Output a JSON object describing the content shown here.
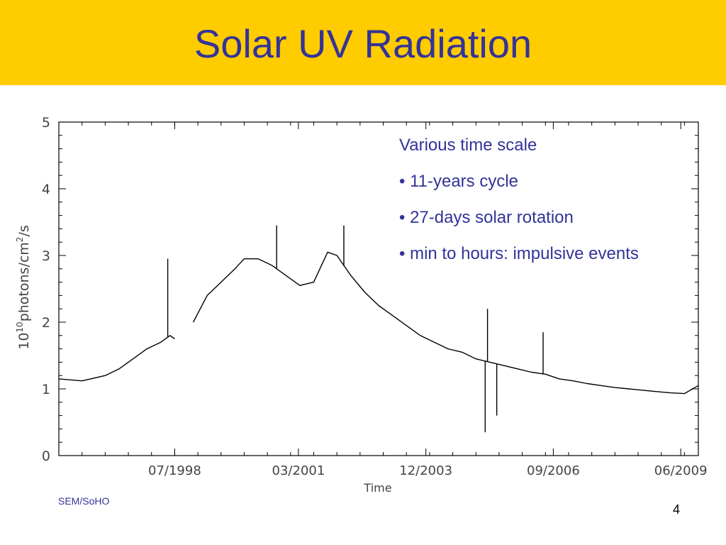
{
  "slide": {
    "title": "Solar UV Radiation",
    "band_color": "#ffcc00",
    "title_color": "#333399",
    "text_color": "#333399",
    "notes": [
      "Various time scale",
      "• 11-years cycle",
      "• 27-days solar rotation",
      "• min to hours: impulsive events"
    ],
    "source": "SEM/SoHO",
    "page_number": "4"
  },
  "chart_data": {
    "type": "line",
    "title": "",
    "xlabel": "Time",
    "ylabel_base": "10",
    "ylabel_exp": "10",
    "ylabel_mid": "photons/cm",
    "ylabel_exp2": "2",
    "ylabel_tail": "/s",
    "x_tick_labels": [
      "07/1998",
      "03/2001",
      "12/2003",
      "09/2006",
      "06/2009"
    ],
    "x_tick_years": [
      1998.5,
      2001.17,
      2003.92,
      2006.67,
      2009.42
    ],
    "xlim": [
      1996.0,
      2009.8
    ],
    "y_ticks": [
      "0",
      "1",
      "2",
      "3",
      "4",
      "5"
    ],
    "ylim": [
      0,
      5
    ],
    "line_color": "#000000",
    "series": [
      {
        "year": [
          1996.0,
          1996.5,
          1997.0,
          1997.3,
          1997.6,
          1997.9,
          1998.2,
          1998.4,
          1998.5,
          1998.6,
          1998.9,
          1999.2,
          1999.5,
          1999.8,
          2000.0,
          2000.3,
          2000.6,
          2000.9,
          2001.2,
          2001.5,
          2001.8,
          2002.0,
          2002.3,
          2002.6,
          2002.9,
          2003.2,
          2003.5,
          2003.8,
          2004.1,
          2004.4,
          2004.7,
          2005.0,
          2005.3,
          2005.6,
          2005.9,
          2006.2,
          2006.5,
          2006.8,
          2007.1,
          2007.4,
          2007.7,
          2008.0,
          2008.3,
          2008.6,
          2008.9,
          2009.2,
          2009.5,
          2009.8
        ],
        "value": [
          1.15,
          1.12,
          1.2,
          1.3,
          1.45,
          1.6,
          1.7,
          1.8,
          1.75,
          null,
          2.0,
          2.4,
          2.6,
          2.8,
          2.95,
          2.95,
          2.85,
          2.7,
          2.55,
          2.6,
          3.05,
          3.0,
          2.7,
          2.45,
          2.25,
          2.1,
          1.95,
          1.8,
          1.7,
          1.6,
          1.55,
          1.45,
          1.4,
          1.35,
          1.3,
          1.25,
          1.22,
          1.15,
          1.12,
          1.08,
          1.05,
          1.02,
          1.0,
          0.98,
          0.96,
          0.94,
          0.93,
          1.05
        ]
      }
    ],
    "spikes": [
      {
        "year": 1998.35,
        "value": 2.95
      },
      {
        "year": 2005.2,
        "value": 0.35
      },
      {
        "year": 2005.25,
        "value": 2.2
      },
      {
        "year": 2005.45,
        "value": 0.6
      },
      {
        "year": 2006.45,
        "value": 1.85
      },
      {
        "year": 2000.7,
        "value": 3.45
      },
      {
        "year": 2002.15,
        "value": 3.45
      }
    ]
  }
}
